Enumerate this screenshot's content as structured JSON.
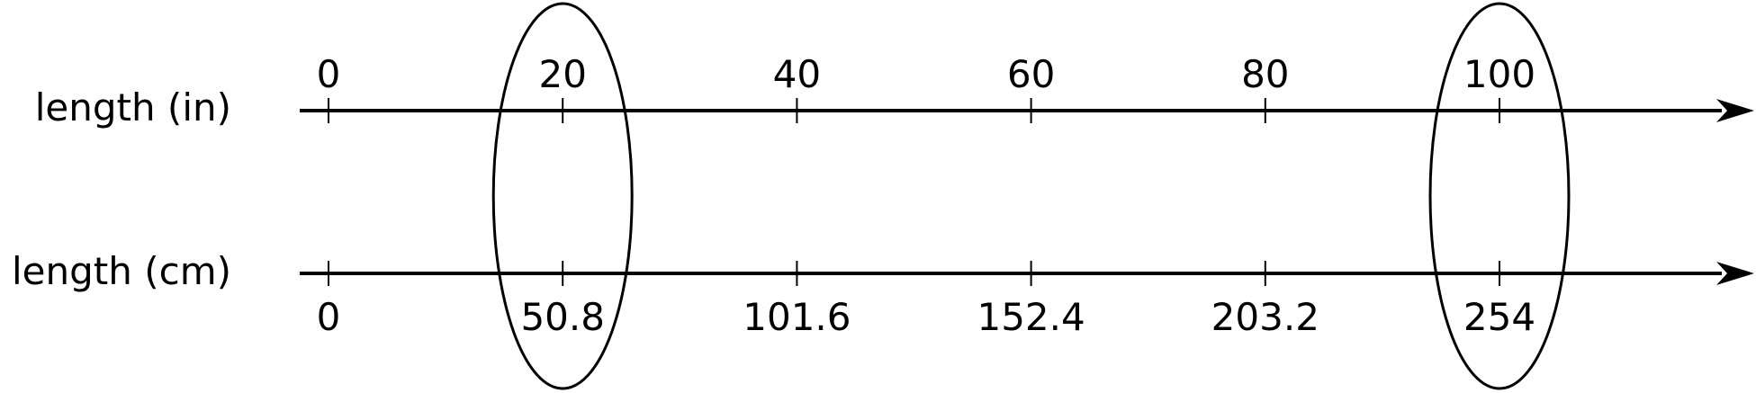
{
  "diagram": {
    "type": "double number line",
    "colors": {
      "stroke": "#000000",
      "background": "#ffffff"
    },
    "lines": [
      {
        "label": "length (in)",
        "ticks": [
          "0",
          "20",
          "40",
          "60",
          "80",
          "100"
        ],
        "labels_position": "above"
      },
      {
        "label": "length (cm)",
        "ticks": [
          "0",
          "50.8",
          "101.6",
          "152.4",
          "203.2",
          "254"
        ],
        "labels_position": "below"
      }
    ],
    "circled_tick_indices": [
      1,
      5
    ]
  }
}
